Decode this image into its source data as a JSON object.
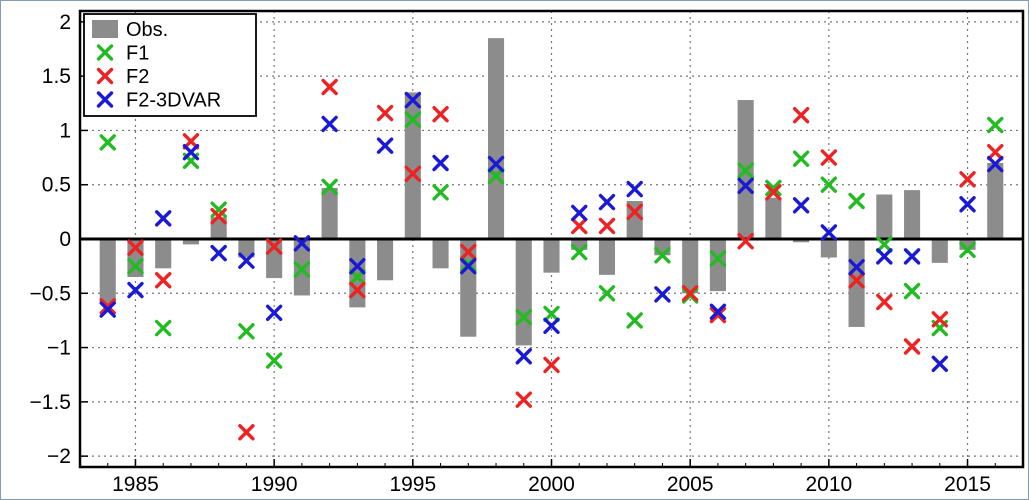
{
  "chart_data": {
    "type": "bar",
    "title": "",
    "xlabel": "",
    "ylabel": "",
    "xlim": [
      1983,
      2017
    ],
    "ylim": [
      -2.1,
      2.1
    ],
    "grid": true,
    "legend_position": "top-left",
    "x_ticks": [
      1985,
      1990,
      1995,
      2000,
      2005,
      2010,
      2015
    ],
    "x_tick_labels": [
      "1985",
      "1990",
      "1995",
      "2000",
      "2005",
      "2010",
      "2015"
    ],
    "y_ticks": [
      -2,
      -1.5,
      -1,
      -0.5,
      0,
      0.5,
      1,
      1.5,
      2
    ],
    "y_tick_labels": [
      "−2",
      "−1.5",
      "−1",
      "−0.5",
      "0",
      "0.5",
      "1",
      "1.5",
      "2"
    ],
    "years": [
      1984,
      1985,
      1986,
      1987,
      1988,
      1989,
      1990,
      1991,
      1992,
      1993,
      1994,
      1995,
      1996,
      1997,
      1998,
      1999,
      2000,
      2001,
      2002,
      2003,
      2004,
      2005,
      2006,
      2007,
      2008,
      2009,
      2010,
      2011,
      2012,
      2013,
      2014,
      2015,
      2016
    ],
    "series": [
      {
        "name": "Obs.",
        "kind": "bar",
        "color": "#8c8c8c",
        "values": [
          -0.6,
          -0.35,
          -0.27,
          -0.05,
          0.2,
          -0.17,
          -0.36,
          -0.52,
          0.47,
          -0.63,
          -0.38,
          1.35,
          -0.27,
          -0.9,
          1.85,
          -0.98,
          -0.31,
          -0.1,
          -0.33,
          0.35,
          -0.15,
          -0.5,
          -0.48,
          1.28,
          0.38,
          -0.03,
          -0.17,
          -0.81,
          0.41,
          0.45,
          -0.22,
          -0.1,
          0.7
        ]
      },
      {
        "name": "F1",
        "kind": "scatter",
        "color": "#22bb22",
        "values": [
          0.89,
          -0.25,
          -0.82,
          0.72,
          0.27,
          -0.85,
          -1.12,
          -0.28,
          0.48,
          -0.35,
          null,
          1.1,
          0.43,
          -0.23,
          0.58,
          -0.72,
          -0.69,
          -0.12,
          -0.5,
          -0.75,
          -0.15,
          -0.52,
          -0.18,
          0.63,
          0.47,
          0.74,
          0.5,
          0.35,
          -0.05,
          -0.48,
          -0.82,
          -0.1,
          1.05
        ]
      },
      {
        "name": "F2",
        "kind": "scatter",
        "color": "#ee2222",
        "values": [
          -0.62,
          -0.08,
          -0.38,
          0.9,
          0.21,
          -1.78,
          -0.07,
          null,
          1.4,
          -0.47,
          1.16,
          0.6,
          1.15,
          -0.12,
          null,
          -1.48,
          -1.16,
          0.12,
          0.12,
          0.25,
          null,
          -0.5,
          -0.7,
          -0.02,
          0.43,
          1.14,
          0.75,
          -0.38,
          -0.58,
          -0.99,
          -0.74,
          0.55,
          0.8
        ]
      },
      {
        "name": "F2-3DVAR",
        "kind": "scatter",
        "color": "#1a1ad6",
        "values": [
          -0.65,
          -0.47,
          0.19,
          0.8,
          -0.13,
          -0.2,
          -0.68,
          -0.04,
          1.06,
          -0.25,
          0.86,
          1.28,
          0.7,
          -0.25,
          0.69,
          -1.08,
          -0.8,
          0.24,
          0.34,
          0.46,
          -0.51,
          null,
          -0.67,
          0.49,
          null,
          0.31,
          0.06,
          -0.26,
          -0.16,
          -0.16,
          -1.15,
          0.32,
          0.69
        ]
      }
    ]
  }
}
